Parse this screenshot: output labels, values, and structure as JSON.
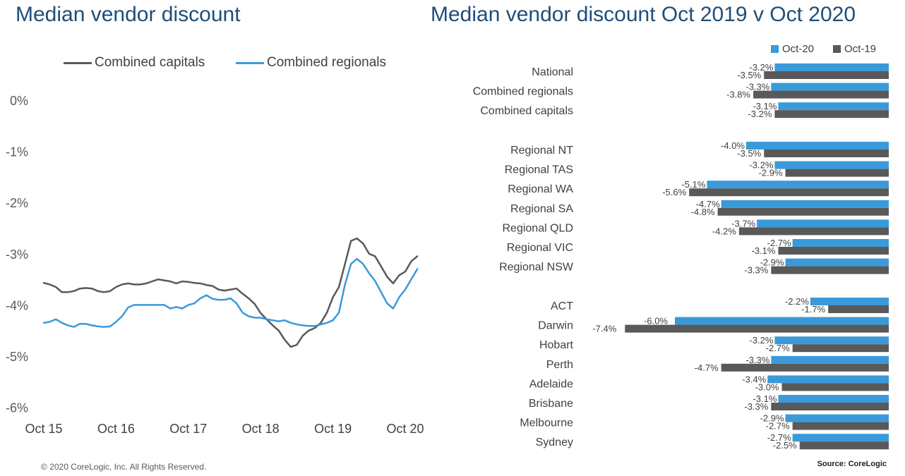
{
  "left_title": "Median vendor discount",
  "right_title": "Median vendor discount Oct 2019 v Oct 2020",
  "copyright": "© 2020 CoreLogic,  Inc. All Rights Reserved.",
  "source": "Source: CoreLogic",
  "colors": {
    "title": "#1f4e79",
    "capitals": "#595959",
    "regionals": "#3a9ad9",
    "oct20": "#3a9ad9",
    "oct19": "#595959"
  },
  "chart_data": [
    {
      "type": "line",
      "title": "Median vendor discount",
      "x_tick_labels": [
        "Oct 15",
        "Oct 16",
        "Oct 17",
        "Oct 18",
        "Oct 19",
        "Oct 20"
      ],
      "y_tick_labels": [
        "0%",
        "-1%",
        "-2%",
        "-3%",
        "-4%",
        "-5%",
        "-6%"
      ],
      "ylim": [
        -6,
        0
      ],
      "grid": false,
      "legend_position": "top",
      "x_unit": "months since Oct 2015",
      "series": [
        {
          "name": "Combined capitals",
          "color": "#595959",
          "values": [
            -3.57,
            -3.6,
            -3.65,
            -3.75,
            -3.75,
            -3.73,
            -3.68,
            -3.67,
            -3.68,
            -3.73,
            -3.75,
            -3.73,
            -3.65,
            -3.6,
            -3.58,
            -3.6,
            -3.6,
            -3.58,
            -3.54,
            -3.5,
            -3.52,
            -3.54,
            -3.58,
            -3.54,
            -3.55,
            -3.57,
            -3.58,
            -3.61,
            -3.63,
            -3.7,
            -3.72,
            -3.7,
            -3.68,
            -3.78,
            -3.87,
            -3.98,
            -4.16,
            -4.28,
            -4.4,
            -4.5,
            -4.68,
            -4.82,
            -4.78,
            -4.6,
            -4.5,
            -4.45,
            -4.35,
            -4.15,
            -3.85,
            -3.65,
            -3.2,
            -2.75,
            -2.7,
            -2.8,
            -3.0,
            -3.05,
            -3.25,
            -3.45,
            -3.58,
            -3.42,
            -3.35,
            -3.15,
            -3.05
          ]
        },
        {
          "name": "Combined regionals",
          "color": "#3a9ad9",
          "values": [
            -4.35,
            -4.33,
            -4.28,
            -4.35,
            -4.4,
            -4.43,
            -4.37,
            -4.37,
            -4.4,
            -4.42,
            -4.43,
            -4.42,
            -4.33,
            -4.22,
            -4.05,
            -4.0,
            -4.0,
            -4.0,
            -4.0,
            -4.0,
            -4.0,
            -4.07,
            -4.04,
            -4.07,
            -4.0,
            -3.97,
            -3.87,
            -3.81,
            -3.88,
            -3.9,
            -3.9,
            -3.87,
            -3.97,
            -4.15,
            -4.22,
            -4.25,
            -4.25,
            -4.28,
            -4.3,
            -4.32,
            -4.3,
            -4.35,
            -4.38,
            -4.4,
            -4.41,
            -4.41,
            -4.38,
            -4.35,
            -4.3,
            -4.15,
            -3.6,
            -3.2,
            -3.1,
            -3.2,
            -3.38,
            -3.53,
            -3.75,
            -3.97,
            -4.07,
            -3.85,
            -3.7,
            -3.5,
            -3.3
          ]
        }
      ]
    },
    {
      "type": "bar",
      "orientation": "horizontal",
      "title": "Median vendor discount Oct 2019 v Oct 2020",
      "legend_position": "top-right",
      "series_names": [
        "Oct-20",
        "Oct-19"
      ],
      "groups": [
        {
          "categories": [
            "National",
            "Combined regionals",
            "Combined capitals"
          ],
          "oct20": [
            -3.2,
            -3.3,
            -3.1
          ],
          "oct19": [
            -3.5,
            -3.8,
            -3.2
          ],
          "oct20_labels": [
            "-3.2%",
            "-3.3%",
            "-3.1%"
          ],
          "oct19_labels": [
            "-3.5%",
            "-3.8%",
            "-3.2%"
          ]
        },
        {
          "categories": [
            "Regional NT",
            "Regional TAS",
            "Regional WA",
            "Regional SA",
            "Regional QLD",
            "Regional VIC",
            "Regional NSW"
          ],
          "oct20": [
            -4.0,
            -3.2,
            -5.1,
            -4.7,
            -3.7,
            -2.7,
            -2.9
          ],
          "oct19": [
            -3.5,
            -2.9,
            -5.6,
            -4.8,
            -4.2,
            -3.1,
            -3.3
          ],
          "oct20_labels": [
            "-4.0%",
            "-3.2%",
            "-5.1%",
            "-4.7%",
            "-3.7%",
            "-2.7%",
            "-2.9%"
          ],
          "oct19_labels": [
            "-3.5%",
            "-2.9%",
            "-5.6%",
            "-4.8%",
            "-4.2%",
            "-3.1%",
            "-3.3%"
          ]
        },
        {
          "categories": [
            "ACT",
            "Darwin",
            "Hobart",
            "Perth",
            "Adelaide",
            "Brisbane",
            "Melbourne",
            "Sydney"
          ],
          "oct20": [
            -2.2,
            -6.0,
            -3.2,
            -3.3,
            -3.4,
            -3.1,
            -2.9,
            -2.7
          ],
          "oct19": [
            -1.7,
            -7.4,
            -2.7,
            -4.7,
            -3.0,
            -3.3,
            -2.7,
            -2.5
          ],
          "oct20_labels": [
            "-2.2%",
            "-6.0%",
            "-3.2%",
            "-3.3%",
            "-3.4%",
            "-3.1%",
            "-2.9%",
            "-2.7%"
          ],
          "oct19_labels": [
            "-1.7%",
            "-7.4%",
            "-2.7%",
            "-4.7%",
            "-3.0%",
            "-3.3%",
            "-2.7%",
            "-2.5%"
          ]
        }
      ]
    }
  ]
}
